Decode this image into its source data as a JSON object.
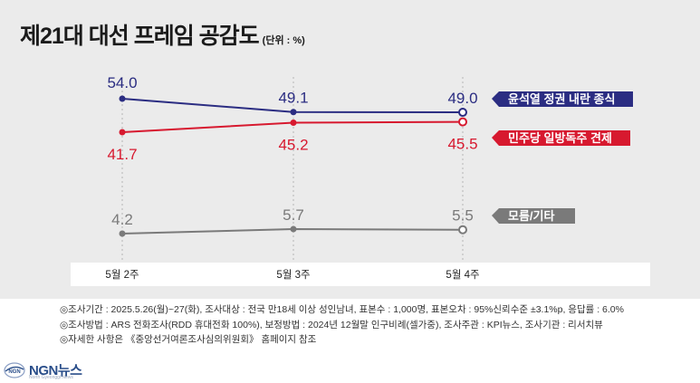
{
  "header": {
    "title": "제21대 대선 프레임 공감도",
    "unit": "(단위 : %)"
  },
  "chart_data": {
    "type": "line",
    "categories": [
      "5월 2주",
      "5월 3주",
      "5월 4주"
    ],
    "ylim": [
      0,
      60
    ],
    "grid": true,
    "legend_placement": "right",
    "series": [
      {
        "name": "윤석열 정권 내란 종식",
        "values": [
          54.0,
          49.1,
          49.0
        ],
        "labels": [
          "54.0",
          "49.1",
          "49.0"
        ],
        "color": "#2b2d82"
      },
      {
        "name": "민주당 일방독주 견제",
        "values": [
          41.7,
          45.2,
          45.5
        ],
        "labels": [
          "41.7",
          "45.2",
          "45.5"
        ],
        "color": "#d7192f"
      },
      {
        "name": "모름/기타",
        "values": [
          4.2,
          5.7,
          5.5
        ],
        "labels": [
          "4.2",
          "5.7",
          "5.5"
        ],
        "color": "#7a7a7a"
      }
    ]
  },
  "notes": [
    "◎조사기간 : 2025.5.26(월)~27(화), 조사대상 : 전국 만18세 이상 성인남녀, 표본수 : 1,000명, 표본오차 : 95%신뢰수준 ±3.1%p, 응답률 : 6.0%",
    "◎조사방법 : ARS 전화조사(RDD 휴대전화 100%), 보정방법 : 2024년 12월말 인구비례(셀가중), 조사주관 : KPI뉴스, 조사기관 : 리서치뷰",
    "◎자세한 사항은 《중앙선거여론조사심의위원회》 홈페이지 참조"
  ],
  "logo": {
    "name": "NGN뉴스",
    "mark_text": "NGN",
    "subtitle": "North Gyeonggi News"
  }
}
